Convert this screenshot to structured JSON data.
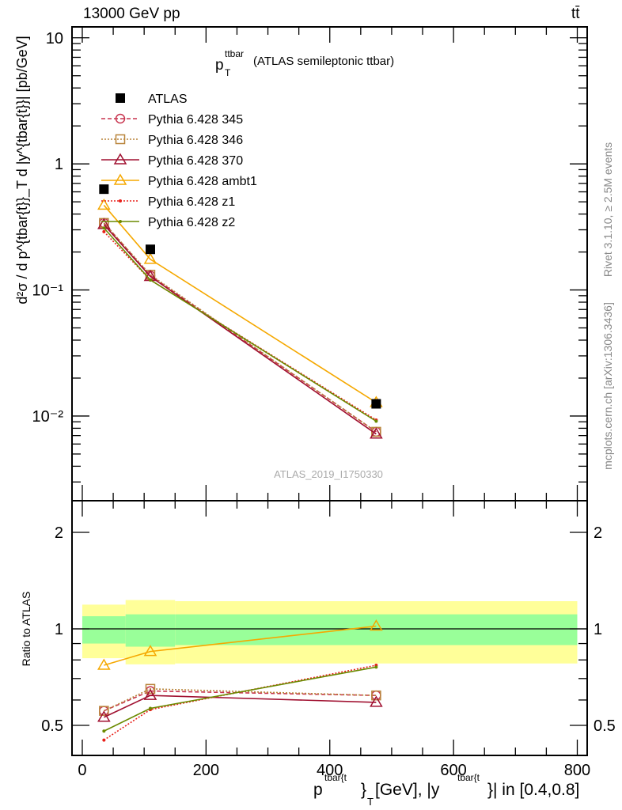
{
  "chart_data": [
    {
      "type": "line",
      "title": "p_T^ttbar (ATLAS semileptonic ttbar)",
      "title_main": "p",
      "title_sup": "ttbar",
      "title_sub": "T",
      "title_rest": "(ATLAS semileptonic ttbar)",
      "top_left_label": "13000 GeV pp",
      "top_right_label": "tt̄",
      "ylabel": "d²σ / d p^{tbar{t}}_T d |y^{tbar{t}}| [pb/GeV]",
      "yscale": "log",
      "ylim": [
        0.0021,
        12.2
      ],
      "xlim": [
        -16.6,
        816
      ],
      "yticks": [
        {
          "v": 10,
          "label": "10"
        },
        {
          "v": 1,
          "label": "1"
        },
        {
          "v": 0.1,
          "label": "10⁻¹"
        },
        {
          "v": 0.01,
          "label": "10⁻²"
        }
      ],
      "x": [
        35,
        110,
        475
      ],
      "series": [
        {
          "name": "ATLAS",
          "values": [
            0.63,
            0.21,
            0.0125
          ],
          "color": "#000000",
          "marker": "square-filled",
          "dash": "none"
        },
        {
          "name": "Pythia 6.428 345",
          "values": [
            0.34,
            0.13,
            0.0075
          ],
          "color": "#c8344f",
          "marker": "circle",
          "dash": "5,3"
        },
        {
          "name": "Pythia 6.428 346",
          "values": [
            0.34,
            0.132,
            0.0075
          ],
          "color": "#b8843a",
          "marker": "square",
          "dash": "2,2"
        },
        {
          "name": "Pythia 6.428 370",
          "values": [
            0.33,
            0.128,
            0.0072
          ],
          "color": "#a01030",
          "marker": "triangle",
          "dash": "none"
        },
        {
          "name": "Pythia 6.428 ambt1",
          "values": [
            0.47,
            0.175,
            0.0128
          ],
          "color": "#f5a800",
          "marker": "triangle",
          "dash": "none"
        },
        {
          "name": "Pythia 6.428 z1",
          "values": [
            0.29,
            0.12,
            0.0093
          ],
          "color": "#e8201a",
          "marker": "dot",
          "dash": "2,2"
        },
        {
          "name": "Pythia 6.428 z2",
          "values": [
            0.31,
            0.12,
            0.0091
          ],
          "color": "#6b8a00",
          "marker": "dot",
          "dash": "none"
        }
      ],
      "legend_placement": "top-left",
      "watermark": "ATLAS_2019_I1750330",
      "side_labels": [
        "Rivet 3.1.10, ≥ 2.5M events",
        "mcplots.cern.ch [arXiv:1306.3436]"
      ]
    },
    {
      "type": "line",
      "ylabel": "Ratio to ATLAS",
      "yscale": "log",
      "ylim": [
        0.403,
        2.51
      ],
      "yticks": [
        {
          "v": 2,
          "label": "2"
        },
        {
          "v": 1,
          "label": "1"
        },
        {
          "v": 0.5,
          "label": "0.5"
        }
      ],
      "xlabel": "p^{tbar{t}}_T [GeV], |y^{tbar{t}}| in [0.4,0.8]",
      "xlabel_p": "p",
      "xlabel_sup1": "tbar{t",
      "xlabel_brace1": "}",
      "xlabel_sub": "T",
      "xlabel_mid": " [GeV], |y",
      "xlabel_sup2": "tbar{t",
      "xlabel_end": "}| in [0.4,0.8]",
      "xticks": [
        0,
        200,
        400,
        600,
        800
      ],
      "bins": [
        [
          0,
          70
        ],
        [
          70,
          150
        ],
        [
          150,
          800
        ]
      ],
      "band_inner": [
        [
          0.9,
          1.095
        ],
        [
          0.88,
          1.11
        ],
        [
          0.89,
          1.11
        ]
      ],
      "band_outer": [
        [
          0.81,
          1.19
        ],
        [
          0.775,
          1.23
        ],
        [
          0.78,
          1.22
        ]
      ],
      "band_colors": {
        "inner": "#99ff99",
        "outer": "#ffff99"
      },
      "x": [
        35,
        110,
        475
      ],
      "series": [
        {
          "name": "Pythia 6.428 345",
          "values": [
            0.555,
            0.64,
            0.62
          ]
        },
        {
          "name": "Pythia 6.428 346",
          "values": [
            0.555,
            0.65,
            0.62
          ]
        },
        {
          "name": "Pythia 6.428 370",
          "values": [
            0.53,
            0.62,
            0.59
          ]
        },
        {
          "name": "Pythia 6.428 ambt1",
          "values": [
            0.77,
            0.85,
            1.02
          ]
        },
        {
          "name": "Pythia 6.428 z1",
          "values": [
            0.45,
            0.56,
            0.77
          ]
        },
        {
          "name": "Pythia 6.428 z2",
          "values": [
            0.48,
            0.565,
            0.76
          ]
        }
      ]
    }
  ]
}
